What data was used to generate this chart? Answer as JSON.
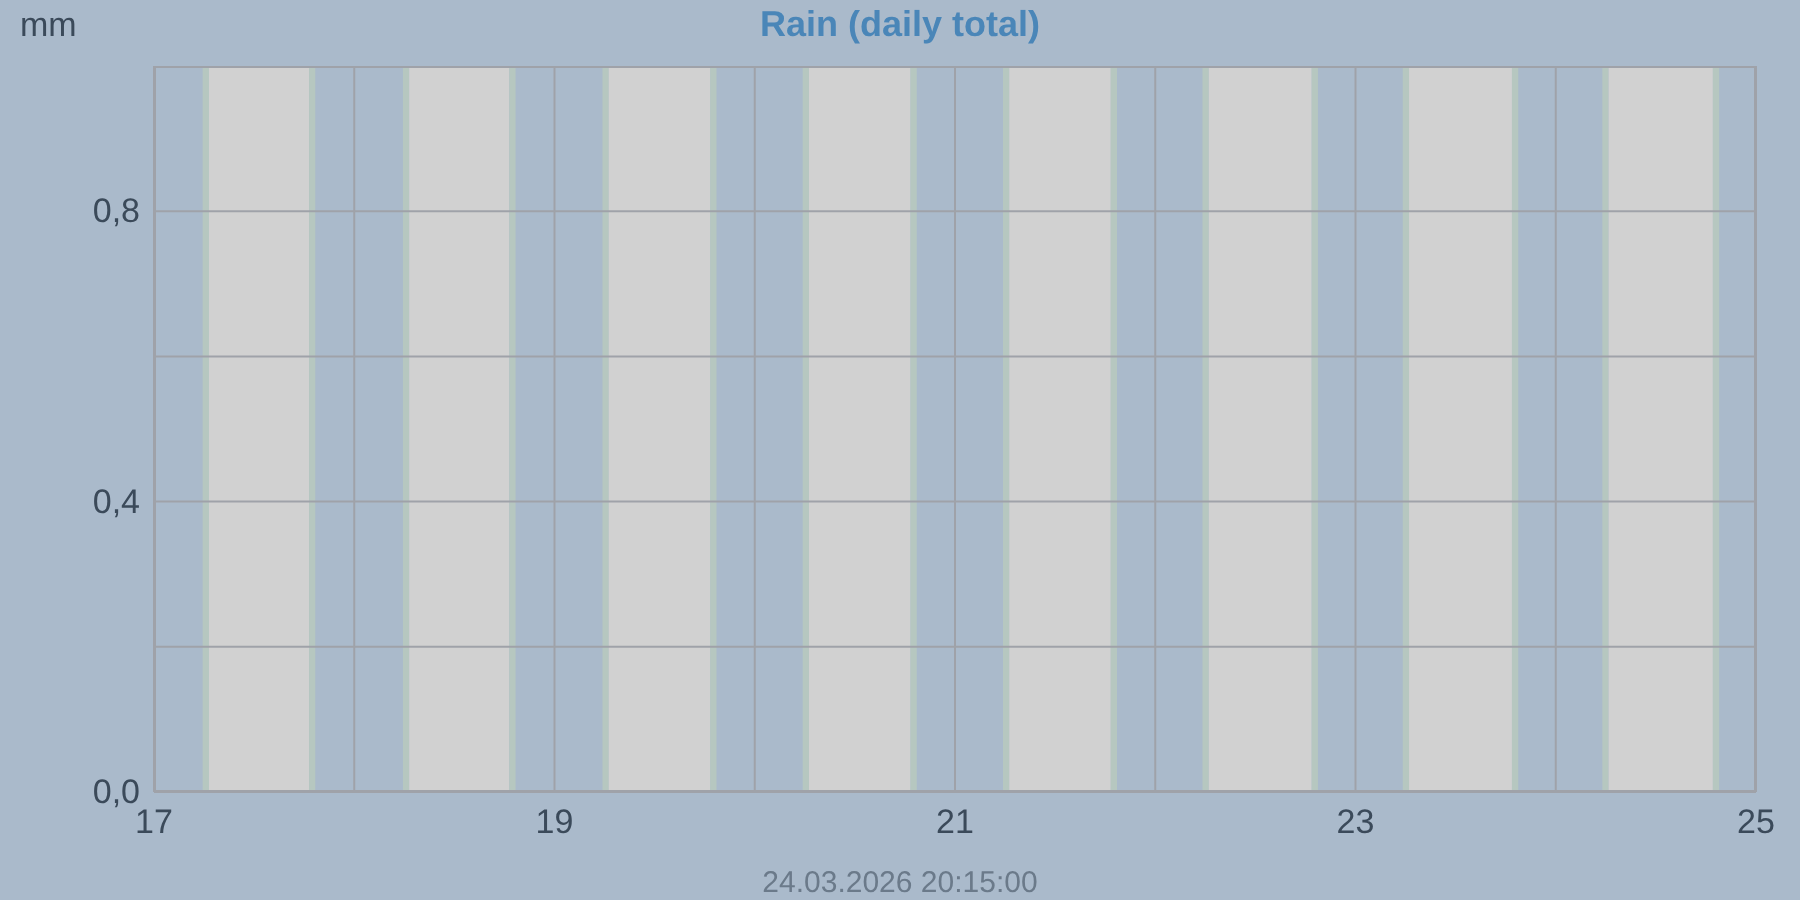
{
  "chart_data": {
    "type": "bar",
    "title": "Rain (daily total)",
    "ylabel": "mm",
    "annotations": [
      "24.03.2026 20:15:00"
    ],
    "x": [
      "2026-03-17",
      "2026-03-18",
      "2026-03-19",
      "2026-03-20",
      "2026-03-21",
      "2026-03-22",
      "2026-03-23",
      "2026-03-24"
    ],
    "values": [
      0,
      0,
      0,
      0,
      0,
      0,
      0,
      0
    ],
    "xlim": [
      "2026-03-17",
      "2026-03-25"
    ],
    "xticks": [
      {
        "value": "2026-03-17",
        "label": "17"
      },
      {
        "value": "2026-03-18",
        "label": null
      },
      {
        "value": "2026-03-19",
        "label": "19"
      },
      {
        "value": "2026-03-20",
        "label": null
      },
      {
        "value": "2026-03-21",
        "label": "21"
      },
      {
        "value": "2026-03-22",
        "label": null
      },
      {
        "value": "2026-03-23",
        "label": "23"
      },
      {
        "value": "2026-03-24",
        "label": null
      },
      {
        "value": "2026-03-25",
        "label": "25"
      }
    ],
    "ylim": [
      0,
      1
    ],
    "yticks": [
      {
        "value": 0,
        "label": "0,0"
      },
      {
        "value": 0.2,
        "label": null
      },
      {
        "value": 0.4,
        "label": "0,4"
      },
      {
        "value": 0.6,
        "label": null
      },
      {
        "value": 0.8,
        "label": "0,8"
      }
    ],
    "grid": true,
    "bands": [
      {
        "axis": "x",
        "from": "2026-03-17T05:50",
        "to": "2026-03-17T06:35",
        "color": "#b6c7c0"
      },
      {
        "axis": "x",
        "from": "2026-03-17T06:35",
        "to": "2026-03-17T18:35",
        "color": "#d1d1d1"
      },
      {
        "axis": "x",
        "from": "2026-03-17T18:35",
        "to": "2026-03-17T19:20",
        "color": "#b6c7c0"
      },
      {
        "axis": "x",
        "from": "2026-03-18T05:50",
        "to": "2026-03-18T06:35",
        "color": "#b6c7c0"
      },
      {
        "axis": "x",
        "from": "2026-03-18T06:35",
        "to": "2026-03-18T18:35",
        "color": "#d1d1d1"
      },
      {
        "axis": "x",
        "from": "2026-03-18T18:35",
        "to": "2026-03-18T19:20",
        "color": "#b6c7c0"
      },
      {
        "axis": "x",
        "from": "2026-03-19T05:45",
        "to": "2026-03-19T06:30",
        "color": "#b6c7c0"
      },
      {
        "axis": "x",
        "from": "2026-03-19T06:30",
        "to": "2026-03-19T18:40",
        "color": "#d1d1d1"
      },
      {
        "axis": "x",
        "from": "2026-03-19T18:40",
        "to": "2026-03-19T19:25",
        "color": "#b6c7c0"
      },
      {
        "axis": "x",
        "from": "2026-03-20T05:45",
        "to": "2026-03-20T06:30",
        "color": "#b6c7c0"
      },
      {
        "axis": "x",
        "from": "2026-03-20T06:30",
        "to": "2026-03-20T18:40",
        "color": "#d1d1d1"
      },
      {
        "axis": "x",
        "from": "2026-03-20T18:40",
        "to": "2026-03-20T19:25",
        "color": "#b6c7c0"
      },
      {
        "axis": "x",
        "from": "2026-03-21T05:45",
        "to": "2026-03-21T06:30",
        "color": "#b6c7c0"
      },
      {
        "axis": "x",
        "from": "2026-03-21T06:30",
        "to": "2026-03-21T18:40",
        "color": "#d1d1d1"
      },
      {
        "axis": "x",
        "from": "2026-03-21T18:40",
        "to": "2026-03-21T19:25",
        "color": "#b6c7c0"
      },
      {
        "axis": "x",
        "from": "2026-03-22T05:40",
        "to": "2026-03-22T06:25",
        "color": "#b6c7c0"
      },
      {
        "axis": "x",
        "from": "2026-03-22T06:25",
        "to": "2026-03-22T18:45",
        "color": "#d1d1d1"
      },
      {
        "axis": "x",
        "from": "2026-03-22T18:45",
        "to": "2026-03-22T19:30",
        "color": "#b6c7c0"
      },
      {
        "axis": "x",
        "from": "2026-03-23T05:40",
        "to": "2026-03-23T06:25",
        "color": "#b6c7c0"
      },
      {
        "axis": "x",
        "from": "2026-03-23T06:25",
        "to": "2026-03-23T18:45",
        "color": "#d1d1d1"
      },
      {
        "axis": "x",
        "from": "2026-03-23T18:45",
        "to": "2026-03-23T19:30",
        "color": "#b6c7c0"
      },
      {
        "axis": "x",
        "from": "2026-03-24T05:35",
        "to": "2026-03-24T06:20",
        "color": "#b6c7c0"
      },
      {
        "axis": "x",
        "from": "2026-03-24T06:20",
        "to": "2026-03-24T18:50",
        "color": "#d1d1d1"
      },
      {
        "axis": "x",
        "from": "2026-03-24T18:50",
        "to": "2026-03-24T19:35",
        "color": "#b6c7c0"
      }
    ]
  }
}
